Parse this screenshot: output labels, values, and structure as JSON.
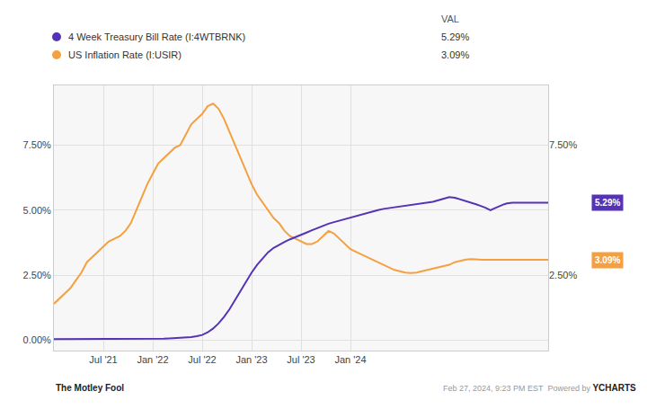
{
  "chart_data": {
    "type": "line",
    "grid": true,
    "legend": "top",
    "legend_header": "VAL",
    "xlim": [
      0,
      180
    ],
    "xticks": [
      {
        "value": 18,
        "label": "Jul '21"
      },
      {
        "value": 36,
        "label": "Jan '22"
      },
      {
        "value": 54,
        "label": "Jul '22"
      },
      {
        "value": 72,
        "label": "Jan '23"
      },
      {
        "value": 90,
        "label": "Jul '23"
      },
      {
        "value": 108,
        "label": "Jan '24"
      }
    ],
    "ylim": [
      -0.4,
      9.8
    ],
    "yticks": [
      {
        "value": 0.0,
        "label": "0.00%"
      },
      {
        "value": 2.5,
        "label": "2.50%"
      },
      {
        "value": 5.0,
        "label": "5.00%"
      },
      {
        "value": 7.5,
        "label": "7.50%"
      }
    ],
    "y2lim": [
      -0.4,
      9.8
    ],
    "y2ticks": [
      {
        "value": 2.5,
        "label": "2.50%"
      },
      {
        "value": 7.5,
        "label": "7.50%"
      }
    ],
    "series": [
      {
        "name": "4 Week Treasury Bill Rate (I:4WTBRNK)",
        "color": "#5533b5",
        "legend_value": {
          "value": 5.29,
          "label": "5.29%"
        },
        "x": [
          0,
          2,
          4,
          6,
          8,
          10,
          12,
          14,
          16,
          18,
          20,
          22,
          24,
          26,
          28,
          30,
          32,
          34,
          36,
          38,
          40,
          42,
          44,
          46,
          48,
          50,
          52,
          54,
          56,
          58,
          60,
          62,
          64,
          66,
          68,
          70,
          72,
          74,
          76,
          78,
          80,
          82,
          84,
          86,
          88,
          90,
          92,
          94,
          96,
          98,
          100,
          102,
          104,
          106,
          108,
          110,
          112,
          114,
          116,
          118,
          120,
          122,
          124,
          126,
          128,
          130,
          132,
          134,
          136,
          138,
          140,
          142,
          144,
          146,
          148,
          150,
          152,
          154,
          155,
          156,
          157,
          158,
          159,
          160,
          161,
          162,
          163,
          164,
          165,
          166,
          167,
          168,
          169,
          170,
          172,
          174,
          176,
          178,
          180
        ],
        "values": [
          0.04,
          0.04,
          0.04,
          0.04,
          0.04,
          0.04,
          0.04,
          0.04,
          0.04,
          0.05,
          0.05,
          0.05,
          0.05,
          0.05,
          0.05,
          0.05,
          0.05,
          0.05,
          0.06,
          0.06,
          0.06,
          0.07,
          0.08,
          0.09,
          0.1,
          0.12,
          0.15,
          0.2,
          0.3,
          0.45,
          0.65,
          0.9,
          1.2,
          1.55,
          1.9,
          2.25,
          2.6,
          2.9,
          3.15,
          3.38,
          3.55,
          3.68,
          3.78,
          3.88,
          3.96,
          4.05,
          4.14,
          4.23,
          4.32,
          4.4,
          4.48,
          4.54,
          4.6,
          4.66,
          4.72,
          4.78,
          4.84,
          4.9,
          4.95,
          5.0,
          5.05,
          5.08,
          5.11,
          5.14,
          5.17,
          5.2,
          5.22,
          5.24,
          5.27,
          5.32,
          5.38,
          5.45,
          5.5,
          5.48,
          5.42,
          5.35,
          5.28,
          5.22,
          5.18,
          5.15,
          5.1,
          5.05,
          5.0,
          5.05,
          5.1,
          5.15,
          5.2,
          5.23,
          5.26,
          5.28,
          5.29,
          5.29,
          5.29,
          5.29,
          5.29,
          5.29,
          5.29,
          5.29,
          5.29
        ]
      },
      {
        "name": "US Inflation Rate (I:USIR)",
        "color": "#f5a040",
        "legend_value": {
          "value": 3.09,
          "label": "3.09%"
        },
        "x": [
          0,
          2,
          4,
          6,
          8,
          10,
          12,
          14,
          16,
          18,
          20,
          22,
          24,
          26,
          28,
          30,
          32,
          34,
          36,
          38,
          40,
          42,
          44,
          46,
          48,
          50,
          52,
          54,
          56,
          58,
          60,
          62,
          64,
          66,
          68,
          70,
          72,
          74,
          76,
          78,
          80,
          82,
          84,
          86,
          88,
          90,
          92,
          94,
          96,
          98,
          100,
          102,
          104,
          106,
          108,
          110,
          112,
          114,
          116,
          118,
          120,
          122,
          124,
          126,
          128,
          130,
          132,
          134,
          136,
          138,
          140,
          142,
          144,
          146,
          148,
          150,
          152,
          154,
          156,
          158,
          160,
          162,
          164,
          166,
          168,
          170,
          172,
          174,
          176,
          178,
          180
        ],
        "values": [
          1.4,
          1.6,
          1.8,
          2.0,
          2.3,
          2.6,
          3.0,
          3.2,
          3.4,
          3.6,
          3.8,
          3.9,
          4.0,
          4.2,
          4.5,
          5.0,
          5.5,
          6.0,
          6.4,
          6.8,
          7.0,
          7.2,
          7.4,
          7.5,
          7.9,
          8.3,
          8.5,
          8.7,
          9.0,
          9.1,
          8.9,
          8.5,
          8.0,
          7.5,
          7.0,
          6.5,
          6.0,
          5.6,
          5.3,
          5.0,
          4.7,
          4.5,
          4.2,
          4.0,
          3.9,
          3.8,
          3.7,
          3.7,
          3.8,
          4.0,
          4.2,
          4.1,
          3.9,
          3.7,
          3.5,
          3.4,
          3.3,
          3.2,
          3.1,
          3.0,
          2.9,
          2.8,
          2.7,
          2.65,
          2.6,
          2.58,
          2.6,
          2.65,
          2.7,
          2.75,
          2.8,
          2.85,
          2.9,
          3.0,
          3.05,
          3.1,
          3.12,
          3.1,
          3.09,
          3.09,
          3.08,
          3.09,
          3.09,
          3.09,
          3.09,
          3.09,
          3.09,
          3.09,
          3.09,
          3.09,
          3.09
        ]
      }
    ],
    "annotations": [
      {
        "text": "5.29%",
        "x": 180,
        "y": 5.29,
        "series": 0
      },
      {
        "text": "3.09%",
        "x": 180,
        "y": 3.09,
        "series": 1
      },
      {
        "text": "The Motley Fool"
      },
      {
        "text": "Feb 27, 2024, 9:23 PM EST  Powered by "
      },
      {
        "text": "YCHARTS"
      }
    ]
  }
}
